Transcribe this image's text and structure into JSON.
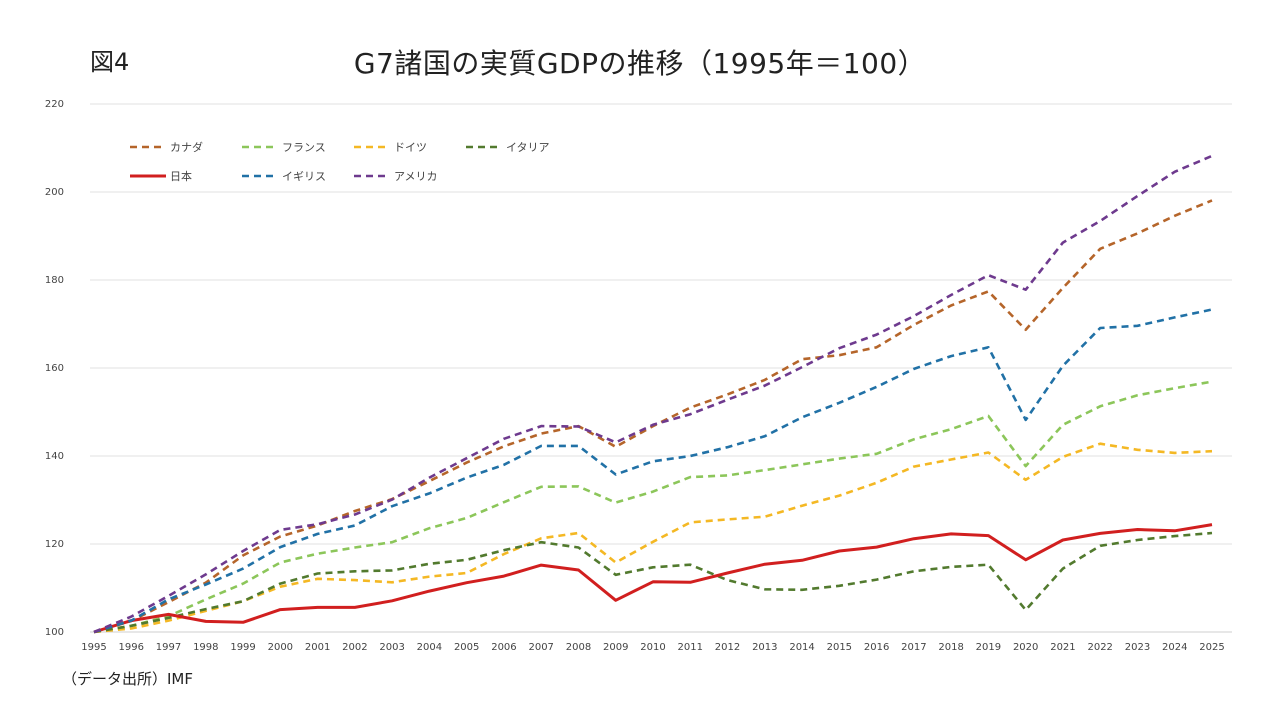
{
  "figure_label": "図4",
  "source_note": "（データ出所）IMF",
  "chart_data": {
    "type": "line",
    "title": "G7諸国の実質GDPの推移（1995年＝100）",
    "xlabel": "",
    "ylabel": "",
    "ylim": [
      100,
      220
    ],
    "y_ticks": [
      100,
      120,
      140,
      160,
      180,
      200,
      220
    ],
    "grid": true,
    "legend_position": "top-left",
    "categories": [
      "1995",
      "1996",
      "1997",
      "1998",
      "1999",
      "2000",
      "2001",
      "2002",
      "2003",
      "2004",
      "2005",
      "2006",
      "2007",
      "2008",
      "2009",
      "2010",
      "2011",
      "2012",
      "2013",
      "2014",
      "2015",
      "2016",
      "2017",
      "2018",
      "2019",
      "2020",
      "2021",
      "2022",
      "2023",
      "2024",
      "2025"
    ],
    "series": [
      {
        "name": "カナダ",
        "color": "#B5652A",
        "dashed": true,
        "values": [
          100,
          102.5,
          106.8,
          111.2,
          117.4,
          121.7,
          124.2,
          127.5,
          130.2,
          134.3,
          138.5,
          142.2,
          145.1,
          146.8,
          142.1,
          146.8,
          151.0,
          154.0,
          157.3,
          162.0,
          162.9,
          164.7,
          169.8,
          174.2,
          177.4,
          168.7,
          178.2,
          187.1,
          190.6,
          194.6,
          198.1
        ]
      },
      {
        "name": "フランス",
        "color": "#8CC65A",
        "dashed": true,
        "values": [
          100,
          101.4,
          103.6,
          107.4,
          111.0,
          115.8,
          117.8,
          119.2,
          120.4,
          123.6,
          125.9,
          129.5,
          133.0,
          133.1,
          129.4,
          131.9,
          135.2,
          135.6,
          136.8,
          138.1,
          139.4,
          140.5,
          143.8,
          146.1,
          149.1,
          137.7,
          147.1,
          151.3,
          153.8,
          155.4,
          156.9
        ]
      },
      {
        "name": "ドイツ",
        "color": "#F4B824",
        "dashed": true,
        "values": [
          100,
          100.8,
          102.6,
          104.8,
          107.0,
          110.3,
          112.1,
          111.8,
          111.3,
          112.6,
          113.4,
          117.7,
          121.3,
          122.5,
          115.8,
          120.5,
          124.9,
          125.6,
          126.2,
          128.7,
          131.0,
          133.9,
          137.6,
          139.2,
          140.8,
          134.6,
          139.8,
          142.8,
          141.4,
          140.7,
          141.1
        ]
      },
      {
        "name": "イタリア",
        "color": "#527A2E",
        "dashed": true,
        "values": [
          100,
          101.4,
          103.2,
          105.2,
          107.0,
          111.0,
          113.3,
          113.8,
          114.0,
          115.5,
          116.4,
          118.6,
          120.4,
          119.2,
          113.0,
          114.7,
          115.3,
          111.8,
          109.7,
          109.6,
          110.5,
          111.9,
          113.8,
          114.8,
          115.3,
          105.0,
          114.4,
          119.6,
          120.9,
          121.8,
          122.5
        ]
      },
      {
        "name": "日本",
        "color": "#D11F1F",
        "dashed": false,
        "values": [
          100,
          102.6,
          104.0,
          102.4,
          102.2,
          105.1,
          105.6,
          105.6,
          107.1,
          109.3,
          111.2,
          112.7,
          115.2,
          114.1,
          107.2,
          111.4,
          111.3,
          113.4,
          115.4,
          116.3,
          118.4,
          119.3,
          121.2,
          122.3,
          121.9,
          116.4,
          120.9,
          122.4,
          123.3,
          123.0,
          124.4
        ]
      },
      {
        "name": "イギリス",
        "color": "#2171A6",
        "dashed": true,
        "values": [
          100,
          102.6,
          107.4,
          110.8,
          114.4,
          119.3,
          122.3,
          124.2,
          128.6,
          131.5,
          135.1,
          138.0,
          142.3,
          142.3,
          135.8,
          138.8,
          140.0,
          142.0,
          144.5,
          148.8,
          152.1,
          155.7,
          159.8,
          162.7,
          164.7,
          148.2,
          160.5,
          169.1,
          169.6,
          171.5,
          173.3
        ]
      },
      {
        "name": "アメリカ",
        "color": "#6E3A8E",
        "dashed": true,
        "values": [
          100,
          103.5,
          108.2,
          113.1,
          118.4,
          123.2,
          124.5,
          126.7,
          130.1,
          135.1,
          139.5,
          143.9,
          146.8,
          146.7,
          143.1,
          147.1,
          149.5,
          152.8,
          156.0,
          160.2,
          164.5,
          167.6,
          171.8,
          176.6,
          181.1,
          177.8,
          188.5,
          193.4,
          199.1,
          204.6,
          208.2
        ]
      }
    ]
  }
}
